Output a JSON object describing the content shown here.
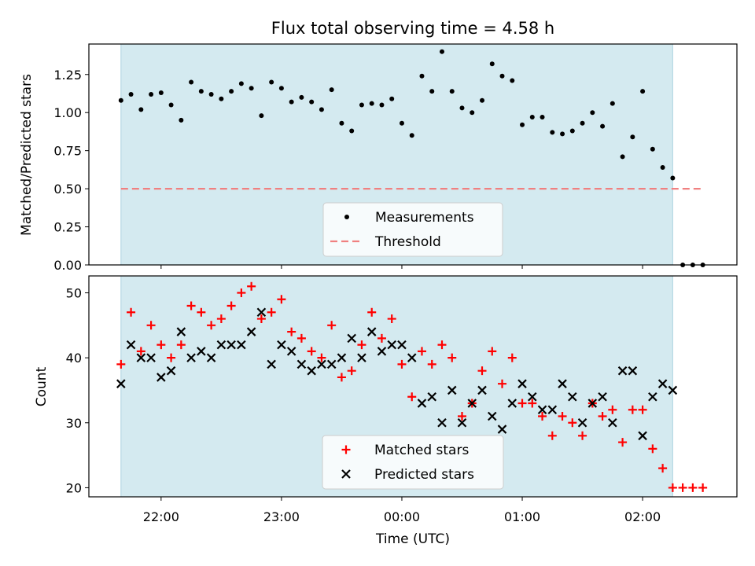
{
  "chart_data": [
    {
      "type": "scatter",
      "title": "Flux total observing time = 4.58 h",
      "xlabel": "",
      "ylabel": "Matched/Predicted stars",
      "ylim": [
        0,
        1.45
      ],
      "yticks": [
        "0.00",
        "0.25",
        "0.50",
        "0.75",
        "1.00",
        "1.25"
      ],
      "shaded_region": {
        "x_start": "21:40",
        "x_end": "02:15",
        "color": "#d4eaf0"
      },
      "threshold": {
        "name": "Threshold",
        "value": 0.5,
        "color": "#f08080",
        "style": "dashed"
      },
      "legend": {
        "position": "lower center",
        "entries": [
          "Measurements",
          "Threshold"
        ]
      },
      "series": [
        {
          "name": "Measurements",
          "marker": "dot",
          "color": "#000000",
          "x": [
            "21:40",
            "21:45",
            "21:50",
            "21:55",
            "22:00",
            "22:05",
            "22:10",
            "22:15",
            "22:20",
            "22:25",
            "22:30",
            "22:35",
            "22:40",
            "22:45",
            "22:50",
            "22:55",
            "23:00",
            "23:05",
            "23:10",
            "23:15",
            "23:20",
            "23:25",
            "23:30",
            "23:35",
            "23:40",
            "23:45",
            "23:50",
            "23:55",
            "00:00",
            "00:05",
            "00:10",
            "00:15",
            "00:20",
            "00:25",
            "00:30",
            "00:35",
            "00:40",
            "00:45",
            "00:50",
            "00:55",
            "01:00",
            "01:05",
            "01:10",
            "01:15",
            "01:20",
            "01:25",
            "01:30",
            "01:35",
            "01:40",
            "01:45",
            "01:50",
            "01:55",
            "02:00",
            "02:05",
            "02:10",
            "02:15",
            "02:20",
            "02:25",
            "02:30"
          ],
          "values": [
            1.08,
            1.12,
            1.02,
            1.12,
            1.13,
            1.05,
            0.95,
            1.2,
            1.14,
            1.12,
            1.09,
            1.14,
            1.19,
            1.16,
            0.98,
            1.2,
            1.16,
            1.07,
            1.1,
            1.07,
            1.02,
            1.15,
            0.93,
            0.88,
            1.05,
            1.06,
            1.05,
            1.09,
            0.93,
            0.85,
            1.24,
            1.14,
            1.4,
            1.14,
            1.03,
            1.0,
            1.08,
            1.32,
            1.24,
            1.21,
            0.92,
            0.97,
            0.97,
            0.87,
            0.86,
            0.88,
            0.93,
            1.0,
            0.91,
            1.06,
            0.71,
            0.84,
            1.14,
            0.76,
            0.64,
            0.57,
            0.0,
            0.0,
            0.0
          ]
        }
      ]
    },
    {
      "type": "scatter",
      "title": "",
      "xlabel": "Time (UTC)",
      "ylabel": "Count",
      "ylim": [
        18.6,
        52.6
      ],
      "yticks": [
        "20",
        "30",
        "40",
        "50"
      ],
      "xticks": [
        "22:00",
        "23:00",
        "00:00",
        "01:00",
        "02:00"
      ],
      "xlim": [
        "21:24",
        "02:47"
      ],
      "shaded_region": {
        "x_start": "21:40",
        "x_end": "02:15",
        "color": "#d4eaf0"
      },
      "legend": {
        "position": "lower center",
        "entries": [
          "Matched stars",
          "Predicted stars"
        ]
      },
      "x": [
        "21:40",
        "21:45",
        "21:50",
        "21:55",
        "22:00",
        "22:05",
        "22:10",
        "22:15",
        "22:20",
        "22:25",
        "22:30",
        "22:35",
        "22:40",
        "22:45",
        "22:50",
        "22:55",
        "23:00",
        "23:05",
        "23:10",
        "23:15",
        "23:20",
        "23:25",
        "23:30",
        "23:35",
        "23:40",
        "23:45",
        "23:50",
        "23:55",
        "00:00",
        "00:05",
        "00:10",
        "00:15",
        "00:20",
        "00:25",
        "00:30",
        "00:35",
        "00:40",
        "00:45",
        "00:50",
        "00:55",
        "01:00",
        "01:05",
        "01:10",
        "01:15",
        "01:20",
        "01:25",
        "01:30",
        "01:35",
        "01:40",
        "01:45",
        "01:50",
        "01:55",
        "02:00",
        "02:05",
        "02:10",
        "02:15",
        "02:20",
        "02:25",
        "02:30"
      ],
      "series": [
        {
          "name": "Matched stars",
          "marker": "plus",
          "color": "#ff0000",
          "values": [
            39,
            47,
            41,
            45,
            42,
            40,
            42,
            48,
            47,
            45,
            46,
            48,
            50,
            51,
            46,
            47,
            49,
            44,
            43,
            41,
            40,
            45,
            37,
            38,
            42,
            47,
            43,
            46,
            39,
            34,
            41,
            39,
            42,
            40,
            31,
            33,
            38,
            41,
            36,
            40,
            33,
            33,
            31,
            28,
            31,
            30,
            28,
            33,
            31,
            32,
            27,
            32,
            32,
            26,
            23,
            20,
            20,
            20,
            20
          ]
        },
        {
          "name": "Predicted stars",
          "marker": "x",
          "color": "#000000",
          "values": [
            36,
            42,
            40,
            40,
            37,
            38,
            44,
            40,
            41,
            40,
            42,
            42,
            42,
            44,
            47,
            39,
            42,
            41,
            39,
            38,
            39,
            39,
            40,
            43,
            40,
            44,
            41,
            42,
            42,
            40,
            33,
            34,
            30,
            35,
            30,
            33,
            35,
            31,
            29,
            33,
            36,
            34,
            32,
            32,
            36,
            34,
            30,
            33,
            34,
            30,
            38,
            38,
            28,
            34,
            36,
            35
          ]
        }
      ]
    }
  ]
}
